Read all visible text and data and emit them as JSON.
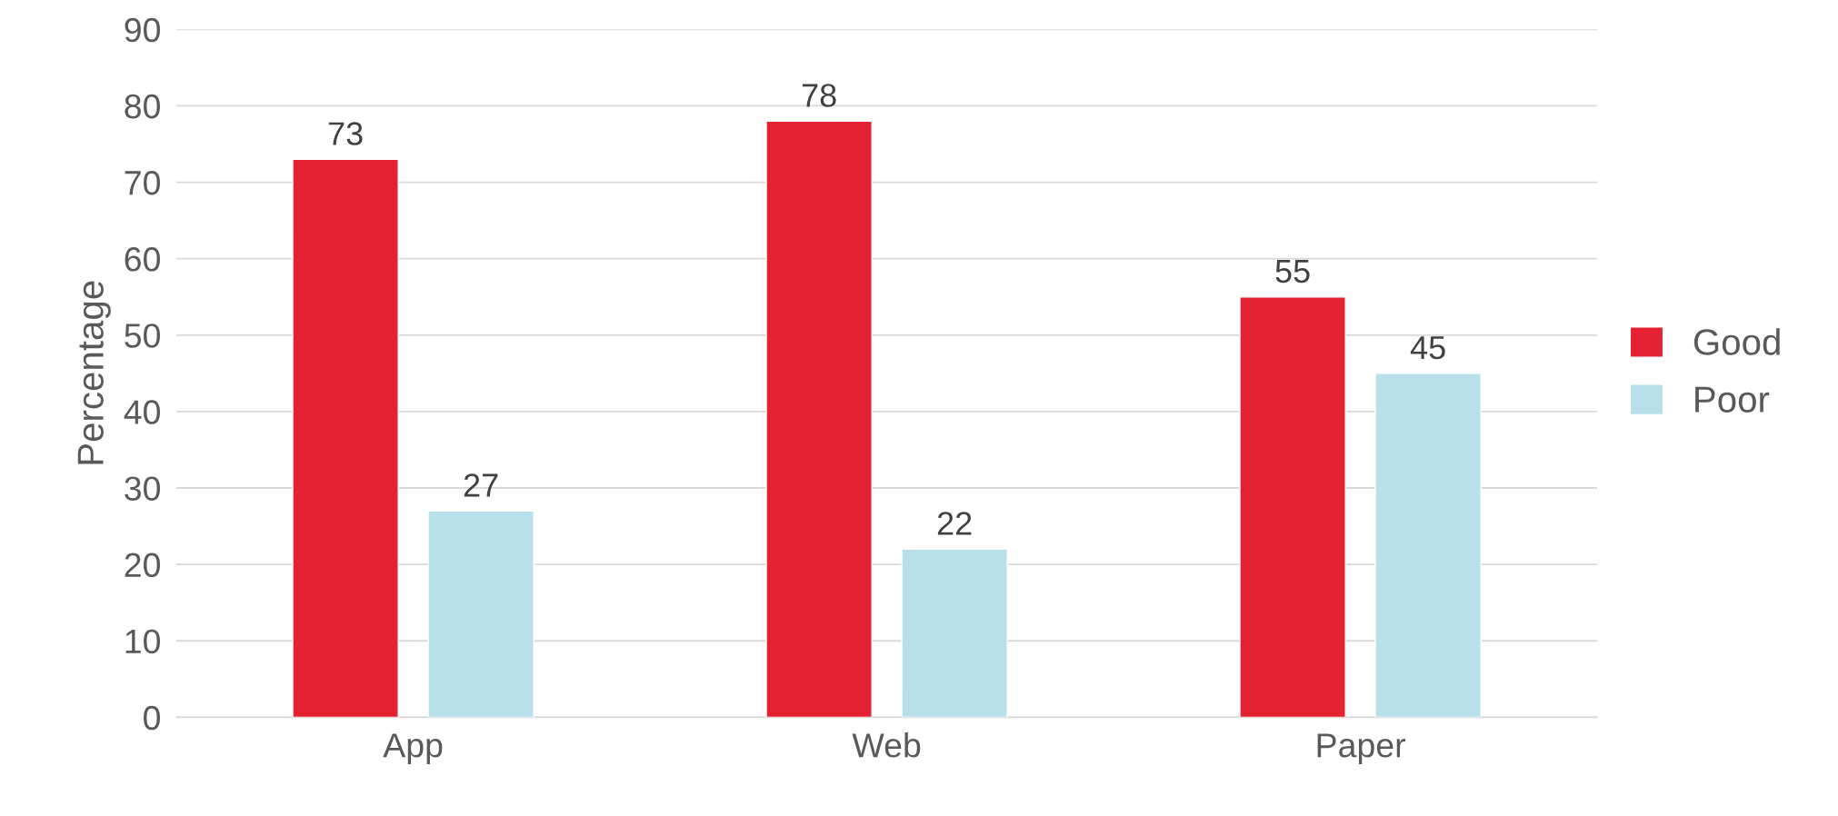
{
  "chart_data": {
    "type": "bar",
    "ylabel": "Percentage",
    "categories": [
      "App",
      "Web",
      "Paper"
    ],
    "series": [
      {
        "name": "Good",
        "color": "#e32130",
        "values": [
          73,
          78,
          55
        ]
      },
      {
        "name": "Poor",
        "color": "#b7e0ea",
        "values": [
          27,
          22,
          45
        ]
      }
    ],
    "ylim": [
      0,
      90
    ],
    "yticks": [
      0,
      10,
      20,
      30,
      40,
      50,
      60,
      70,
      80,
      90
    ],
    "grid": "y",
    "legend": "right",
    "data_labels": true
  }
}
